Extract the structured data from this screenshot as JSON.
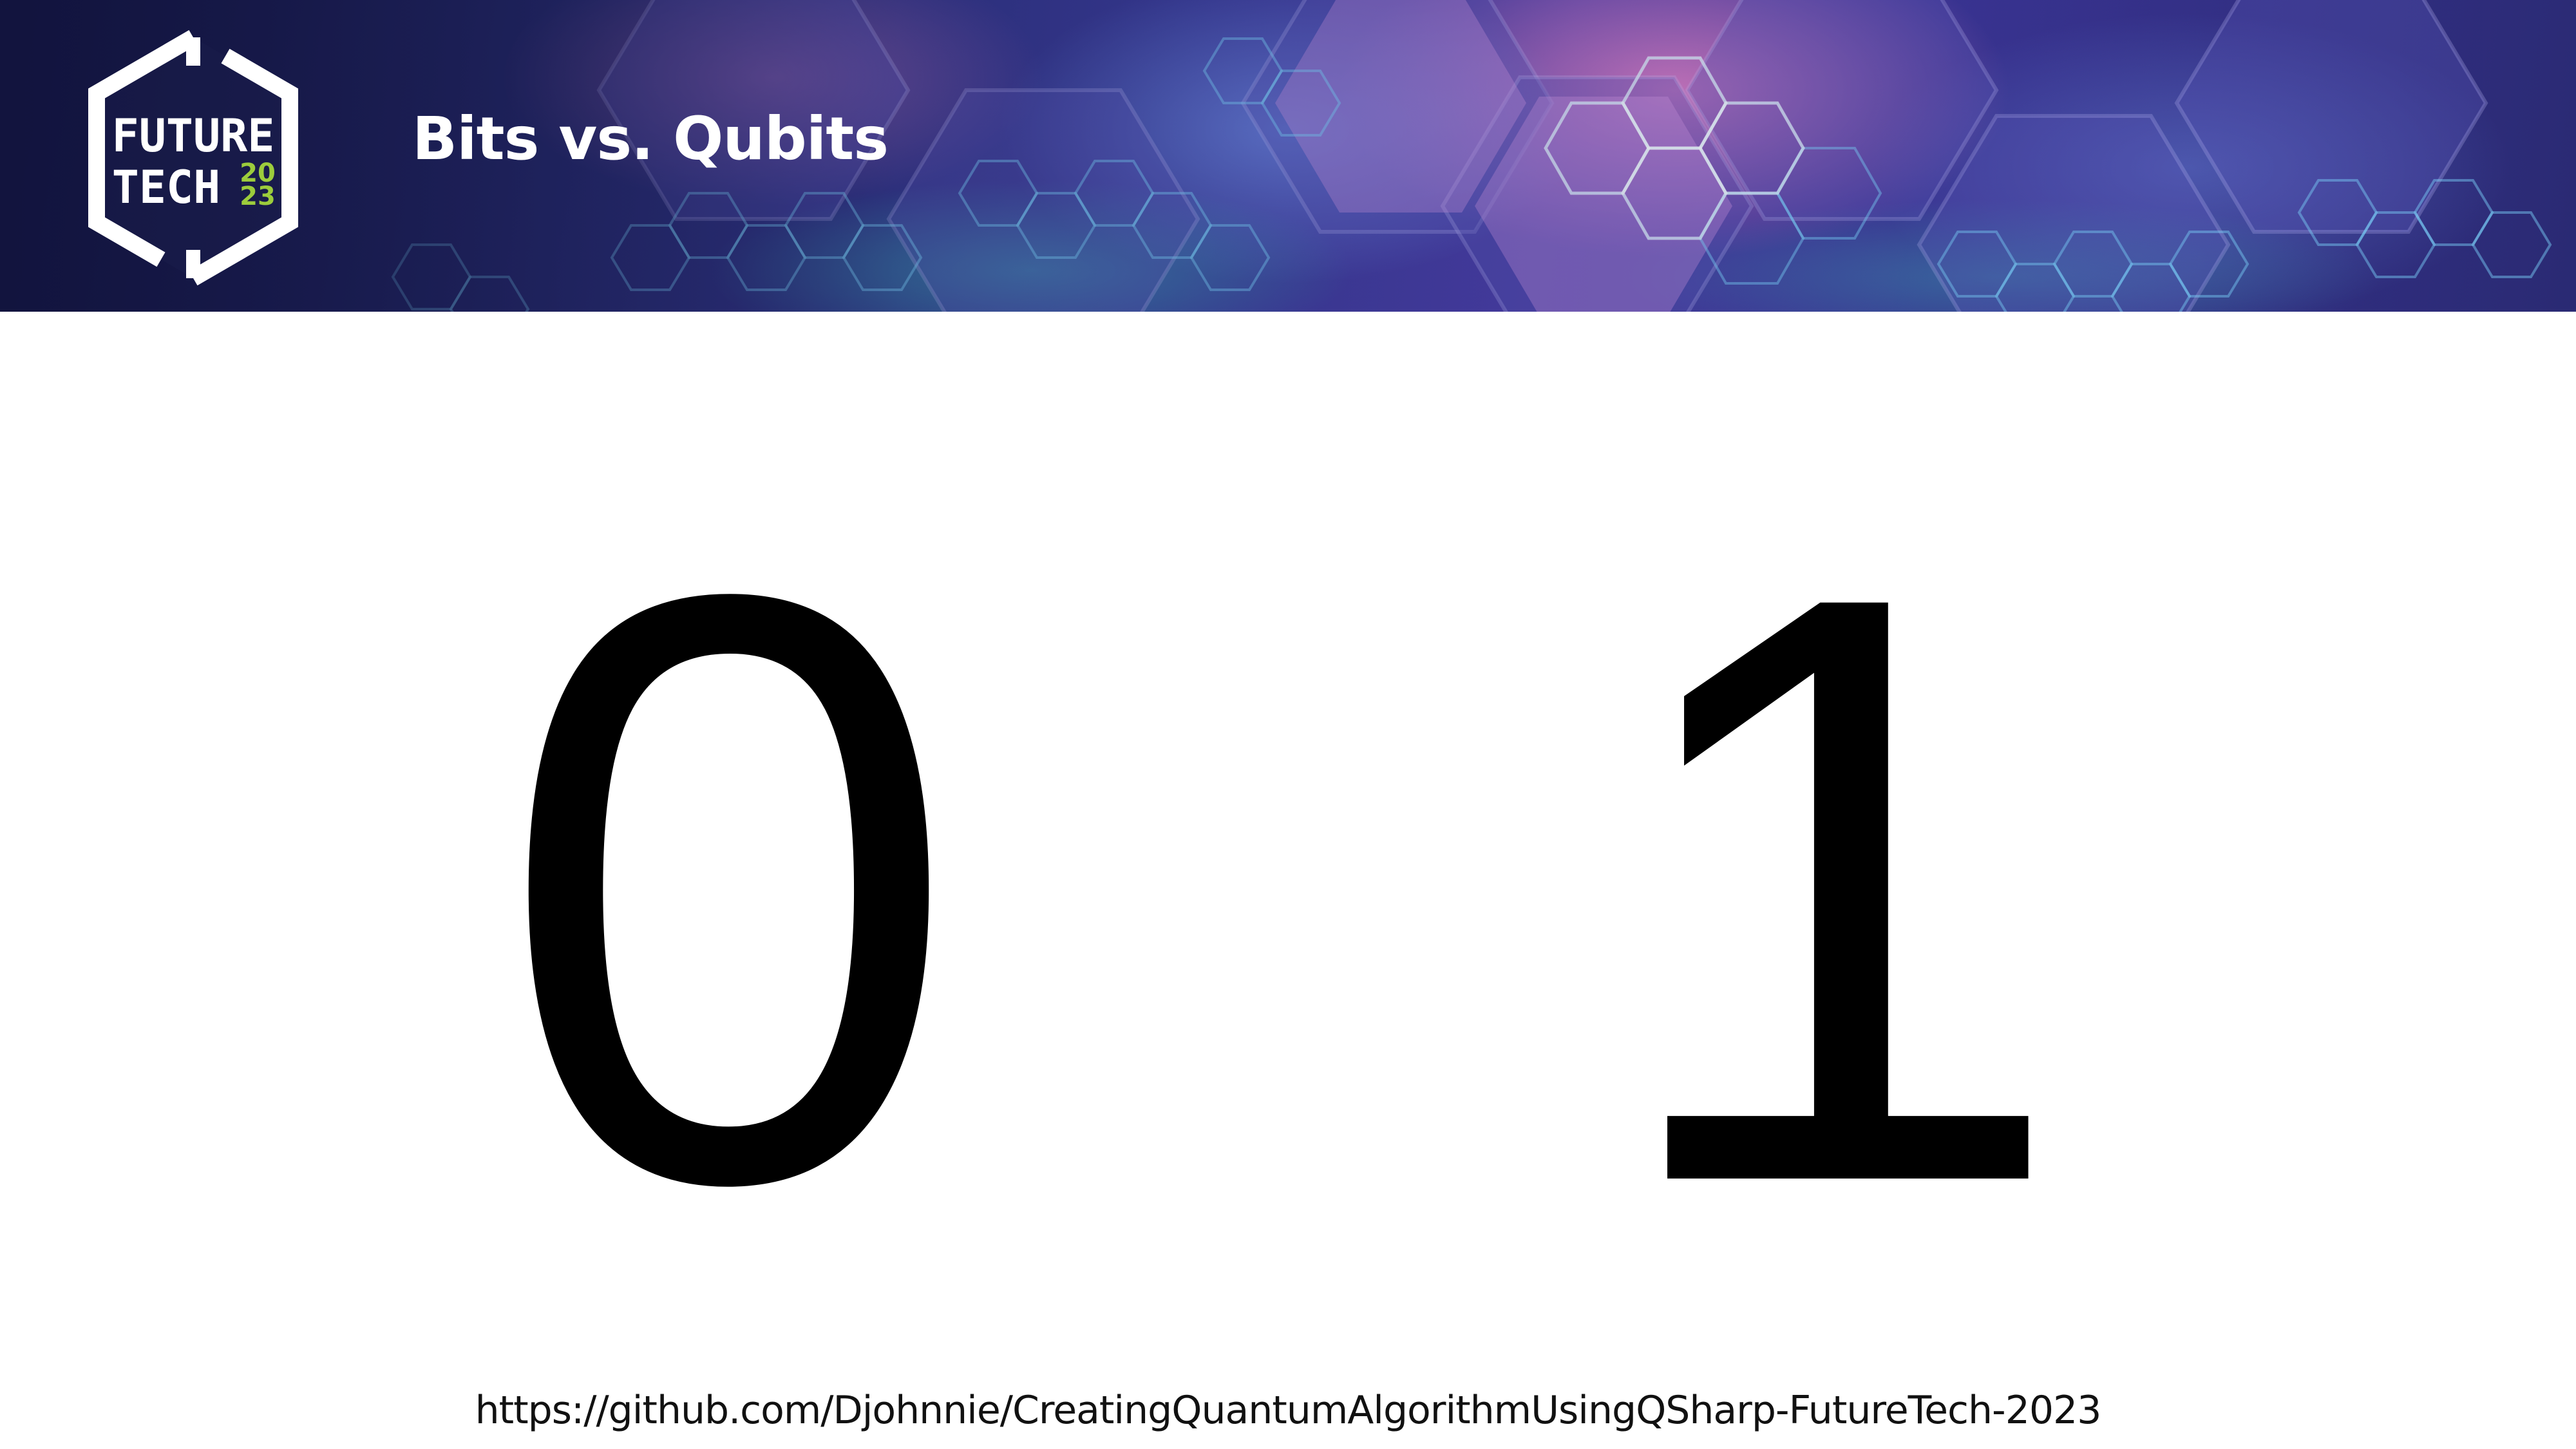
{
  "banner": {
    "title": "Bits vs. Qubits",
    "logo": {
      "word1": "FUTURE",
      "word2": "TECH",
      "year_top": "20",
      "year_bottom": "23",
      "accent_color": "#9ccc3c"
    }
  },
  "content": {
    "left_digit": "0",
    "right_digit": "1"
  },
  "footer": {
    "url": "https://github.com/Djohnnie/CreatingQuantumAlgorithmUsingQSharp-FutureTech-2023"
  }
}
